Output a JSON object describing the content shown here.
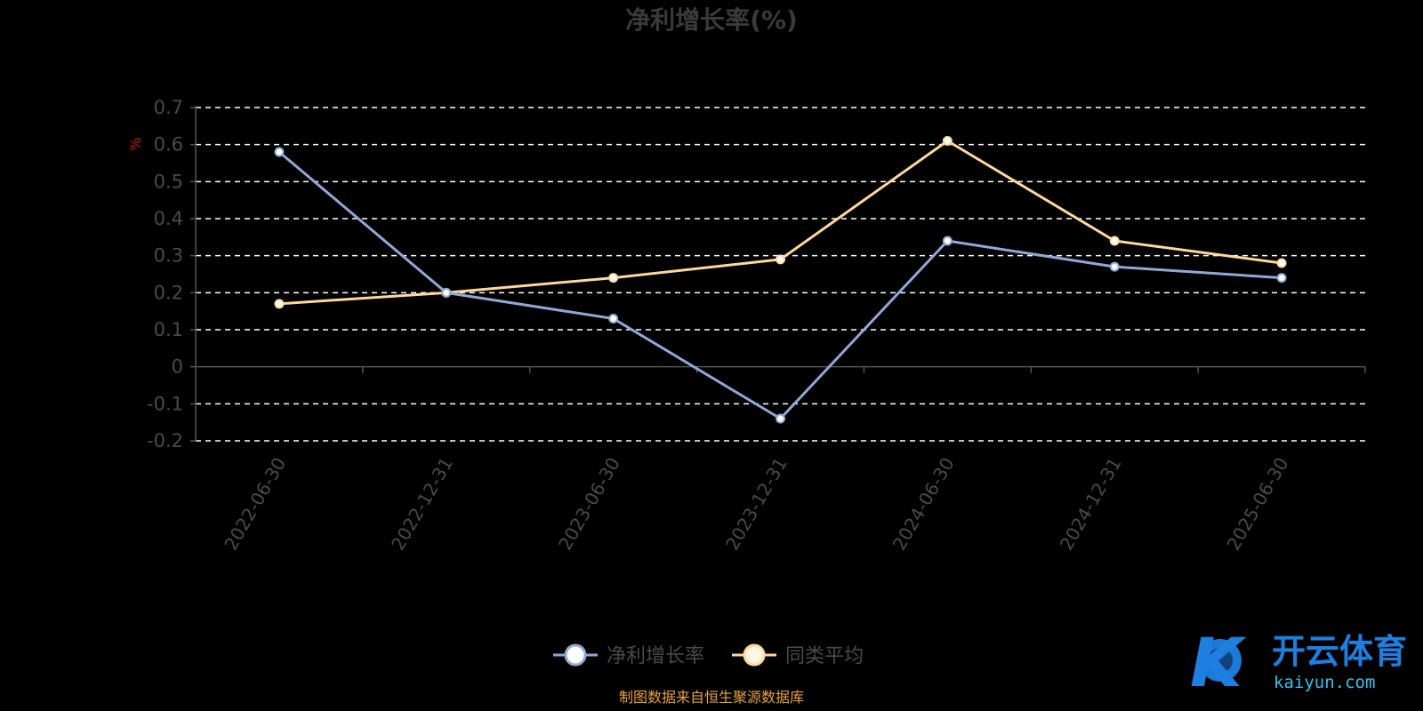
{
  "title": "净利增长率(%)",
  "unit_label": "%",
  "source_note": "制图数据来自恒生聚源数据库",
  "colors": {
    "background": "#000000",
    "series_primary": "#8fa8d8",
    "series_average": "#ffd89a",
    "grid": "#ffffff",
    "axis": "#555555",
    "text": "#4a4a4a",
    "title": "#3a3a3a",
    "unit": "#cc1111",
    "source": "#e8a33a",
    "logo_blue": "#1e7fe0",
    "logo_cyan": "#2cc4ee"
  },
  "watermark": {
    "mark": "K",
    "cn": "开云体育",
    "en": "kaiyun.com"
  },
  "chart_data": {
    "type": "line",
    "title": "净利增长率(%)",
    "xlabel": "",
    "ylabel": "%",
    "categories": [
      "2022-06-30",
      "2022-12-31",
      "2023-06-30",
      "2023-12-31",
      "2024-06-30",
      "2024-12-31",
      "2025-06-30"
    ],
    "ylim": [
      -0.2,
      0.7
    ],
    "yticks": [
      "0.7",
      "0.6",
      "0.5",
      "0.4",
      "0.3",
      "0.2",
      "0.1",
      "0",
      "-0.1",
      "-0.2"
    ],
    "grid": true,
    "legend_position": "bottom-center",
    "series": [
      {
        "name": "净利增长率",
        "values": [
          0.58,
          0.2,
          0.13,
          -0.14,
          0.34,
          0.27,
          0.24
        ]
      },
      {
        "name": "同类平均",
        "values": [
          0.17,
          0.2,
          0.24,
          0.29,
          0.61,
          0.34,
          0.28
        ]
      }
    ]
  }
}
